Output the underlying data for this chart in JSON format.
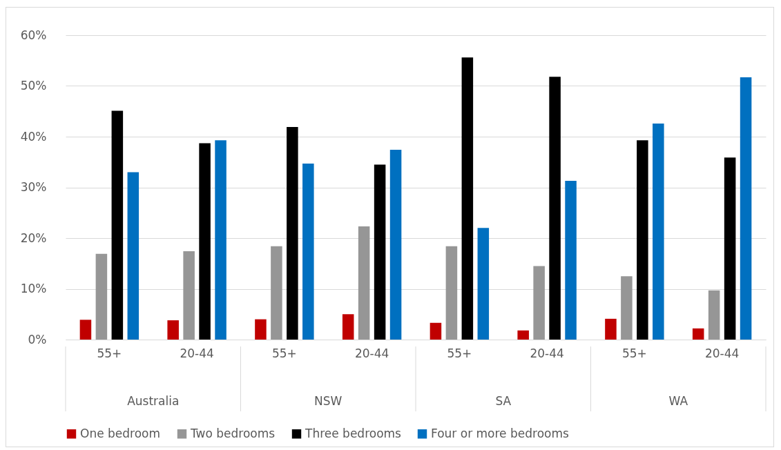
{
  "chart_data": {
    "type": "bar",
    "categories": [
      "55+",
      "20-44",
      "55+",
      "20-44",
      "55+",
      "20-44",
      "55+",
      "20-44"
    ],
    "series": [
      {
        "name": "One bedroom",
        "color": "#c00000",
        "values": [
          3.9,
          3.8,
          4.0,
          5.0,
          3.3,
          1.8,
          4.1,
          2.2
        ]
      },
      {
        "name": "Two bedrooms",
        "color": "#969696",
        "values": [
          16.9,
          17.4,
          18.4,
          22.3,
          18.4,
          14.5,
          12.5,
          9.7
        ]
      },
      {
        "name": "Three bedrooms",
        "color": "#000000",
        "values": [
          45.1,
          38.7,
          41.9,
          34.5,
          55.6,
          51.8,
          39.3,
          35.9
        ]
      },
      {
        "name": "Four or more bedrooms",
        "color": "#0070c0",
        "values": [
          33.0,
          39.3,
          34.7,
          37.4,
          22.0,
          31.3,
          42.6,
          51.7
        ]
      }
    ],
    "annotations": [
      "Australia",
      "NSW",
      "SA",
      "WA"
    ],
    "ylim": [
      0,
      60
    ],
    "yticks": [
      {
        "value": 0,
        "label": "0%"
      },
      {
        "value": 10,
        "label": "10%"
      },
      {
        "value": 20,
        "label": "20%"
      },
      {
        "value": 30,
        "label": "30%"
      },
      {
        "value": 40,
        "label": "40%"
      },
      {
        "value": 50,
        "label": "50%"
      },
      {
        "value": 60,
        "label": "60%"
      }
    ],
    "grid": "y",
    "legend": "bottom"
  }
}
